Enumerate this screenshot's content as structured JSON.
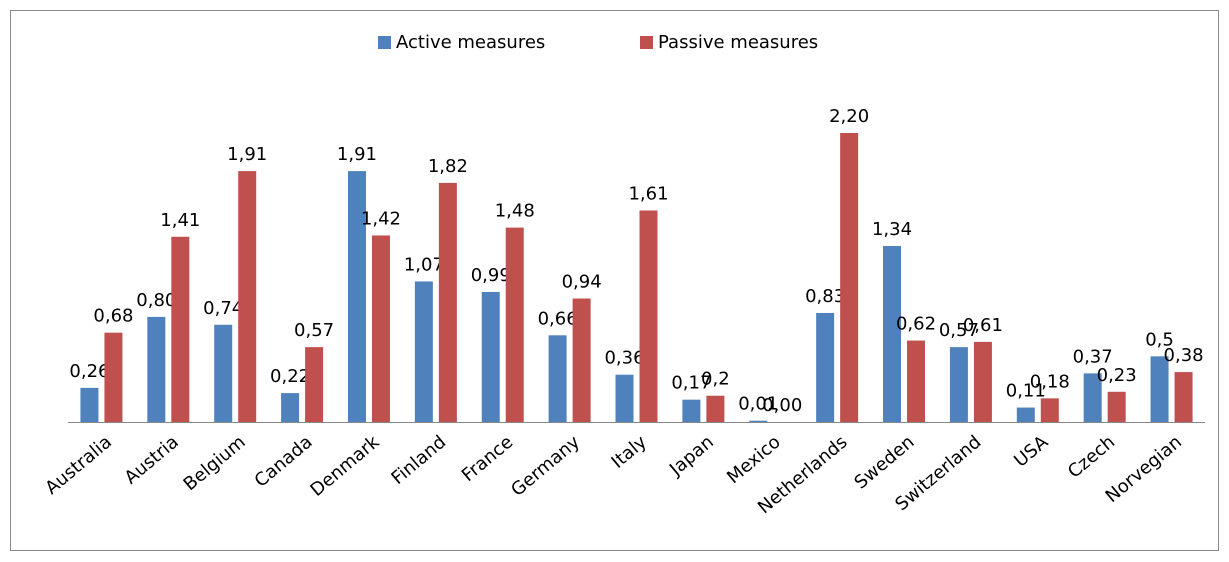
{
  "chart_data": {
    "type": "bar",
    "legend": "top",
    "categories": [
      "Australia",
      "Austria",
      "Belgium",
      "Canada",
      "Denmark",
      "Finland",
      "France",
      "Germany",
      "Italy",
      "Japan",
      "Mexico",
      "Netherlands",
      "Sweden",
      "Switzerland",
      "USA",
      "Czech",
      "Norvegian"
    ],
    "series": [
      {
        "name": "Active measures",
        "color": "#4f81bd",
        "values": [
          0.26,
          0.8,
          0.74,
          0.22,
          1.91,
          1.07,
          0.99,
          0.66,
          0.36,
          0.17,
          0.01,
          0.83,
          1.34,
          0.57,
          0.11,
          0.37,
          0.5
        ],
        "value_labels": [
          "0,26",
          "0,80",
          "0,74",
          "0,22",
          "1,91",
          "1,07",
          "0,99",
          "0,66",
          "0,36",
          "0,17",
          "0,01",
          "0,83",
          "1,34",
          "0,57",
          "0,11",
          "0,37",
          "0,5"
        ]
      },
      {
        "name": "Passive measures",
        "color": "#c0504d",
        "values": [
          0.68,
          1.41,
          1.91,
          0.57,
          1.42,
          1.82,
          1.48,
          0.94,
          1.61,
          0.2,
          0.0,
          2.2,
          0.62,
          0.61,
          0.18,
          0.23,
          0.38
        ],
        "value_labels": [
          "0,68",
          "1,41",
          "1,91",
          "0,57",
          "1,42",
          "1,82",
          "1,48",
          "0,94",
          "1,61",
          "0,2",
          "0,00",
          "2,20",
          "0,62",
          "0,61",
          "0,18",
          "0,23",
          "0,38"
        ]
      }
    ]
  }
}
